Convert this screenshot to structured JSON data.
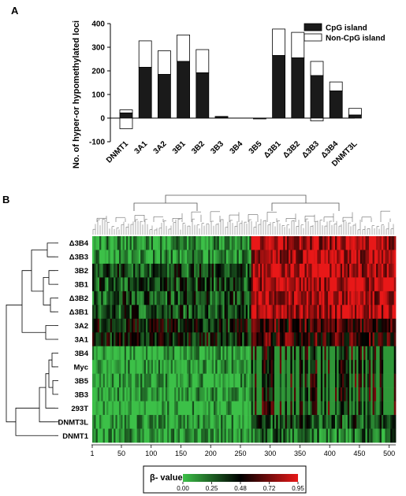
{
  "panel_a": {
    "letter": "A",
    "ylabel": "No. of hyper-or hypomethylated loci",
    "yticks": [
      "400",
      "300",
      "200",
      "100",
      "0",
      "-100"
    ],
    "legend": {
      "cpg": "CpG island",
      "noncpg": "Non-CpG island"
    }
  },
  "panel_b": {
    "letter": "B",
    "xticks": [
      "1",
      "50",
      "100",
      "150",
      "200",
      "250",
      "300",
      "350",
      "400",
      "450",
      "500"
    ],
    "rows": [
      "Δ3B4",
      "Δ3B3",
      "3B2",
      "3B1",
      "Δ3B2",
      "Δ3B1",
      "3A2",
      "3A1",
      "3B4",
      "Myc",
      "3B5",
      "3B3",
      "293T",
      "DNMT3L",
      "DNMT1"
    ],
    "colorbar": {
      "title": "β- value",
      "ticks": [
        "0.00",
        "0.25",
        "0.48",
        "0.72",
        "0.95"
      ],
      "colors": {
        "low": "#3cc048",
        "mid": "#000000",
        "high": "#e81818"
      }
    }
  },
  "chart_data": [
    {
      "type": "bar",
      "stacked": true,
      "categories": [
        "DNMT1",
        "3A1",
        "3A2",
        "3B1",
        "3B2",
        "3B3",
        "3B4",
        "3B5",
        "Δ3B1",
        "Δ3B2",
        "Δ3B3",
        "Δ3B4",
        "DNMT3L"
      ],
      "series": [
        {
          "name": "CpG island",
          "color": "#1a1a1a",
          "values": [
            22,
            215,
            185,
            240,
            192,
            5,
            0,
            -3,
            265,
            255,
            180,
            115,
            13
          ]
        },
        {
          "name": "Non-CpG island",
          "color": "#ffffff",
          "values": [
            13,
            112,
            100,
            112,
            98,
            2,
            0,
            0,
            112,
            108,
            60,
            38,
            28
          ]
        },
        {
          "name": "Non-CpG island (hypo)",
          "color": "#ffffff",
          "values": [
            -45,
            0,
            0,
            0,
            0,
            0,
            0,
            0,
            0,
            0,
            -12,
            0,
            0
          ]
        }
      ],
      "ylabel": "No. of hyper-or hypomethylated loci",
      "ylim": [
        -100,
        400
      ],
      "legend_position": "top-right"
    },
    {
      "type": "heatmap",
      "rows": [
        "Δ3B4",
        "Δ3B3",
        "3B2",
        "3B1",
        "Δ3B2",
        "Δ3B1",
        "3A2",
        "3A1",
        "3B4",
        "Myc",
        "3B5",
        "3B3",
        "293T",
        "DNMT3L",
        "DNMT1"
      ],
      "x_range": [
        1,
        510
      ],
      "clim": [
        0.0,
        0.95
      ],
      "colormap": "green-black-red",
      "colorbar_label": "β- value",
      "block_pattern": {
        "loci_1_to_265": {
          "Δ3B4": 0.1,
          "Δ3B3": 0.1,
          "3B2": 0.3,
          "3B1": 0.3,
          "Δ3B2": 0.3,
          "Δ3B1": 0.3,
          "3A2": 0.4,
          "3A1": 0.4,
          "3B4": 0.05,
          "Myc": 0.05,
          "3B5": 0.05,
          "3B3": 0.05,
          "293T": 0.05,
          "DNMT3L": 0.05,
          "DNMT1": 0.05
        },
        "loci_266_to_510": {
          "Δ3B4": 0.85,
          "Δ3B3": 0.85,
          "3B2": 0.85,
          "3B1": 0.85,
          "Δ3B2": 0.85,
          "Δ3B1": 0.85,
          "3A2": 0.6,
          "3A1": 0.6,
          "3B4": 0.48,
          "Myc": 0.48,
          "3B5": 0.48,
          "3B3": 0.48,
          "293T": 0.48,
          "DNMT3L": 0.3,
          "DNMT1": 0.2
        }
      }
    }
  ]
}
